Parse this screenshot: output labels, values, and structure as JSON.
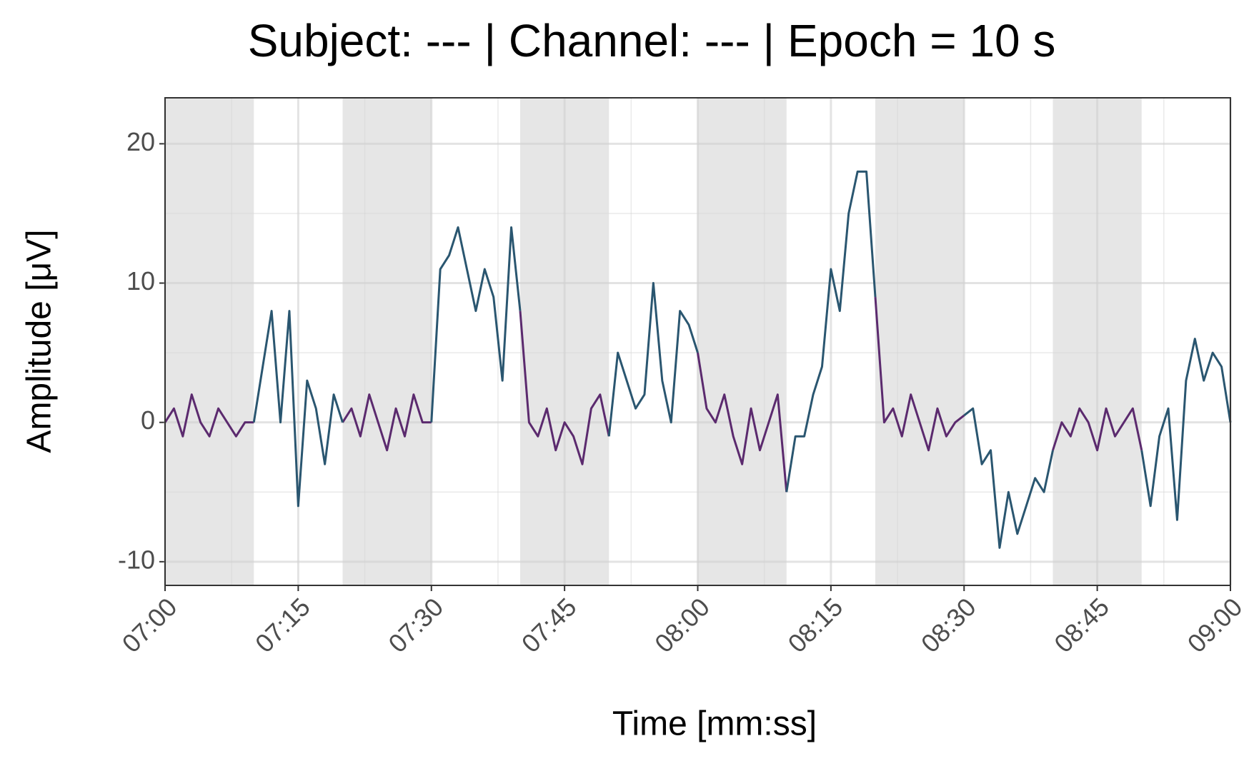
{
  "chart_data": {
    "type": "line",
    "title": "Subject: ---  |  Channel: ---  |  Epoch = 10 s",
    "x_label": "Time [mm:ss]",
    "y_label": "Amplitude [μV]",
    "x": [
      420,
      421,
      422,
      423,
      424,
      425,
      426,
      427,
      428,
      429,
      430,
      431,
      432,
      433,
      434,
      435,
      436,
      437,
      438,
      439,
      440,
      441,
      442,
      443,
      444,
      445,
      446,
      447,
      448,
      449,
      450,
      451,
      452,
      453,
      454,
      455,
      456,
      457,
      458,
      459,
      460,
      461,
      462,
      463,
      464,
      465,
      466,
      467,
      468,
      469,
      470,
      471,
      472,
      473,
      474,
      475,
      476,
      477,
      478,
      479,
      480,
      481,
      482,
      483,
      484,
      485,
      486,
      487,
      488,
      489,
      490,
      491,
      492,
      493,
      494,
      495,
      496,
      497,
      498,
      499,
      500,
      501,
      502,
      503,
      504,
      505,
      506,
      507,
      508,
      509,
      510,
      511,
      512,
      513,
      514,
      515,
      516,
      517,
      518,
      519,
      520,
      521,
      522,
      523,
      524,
      525,
      526,
      527,
      528,
      529,
      530,
      531,
      532,
      533,
      534,
      535,
      536,
      537,
      538,
      539,
      540
    ],
    "series": [
      {
        "color": "#5b2a6e",
        "values": [
          0,
          1,
          -1,
          2,
          0,
          -1,
          1,
          0,
          -1,
          0,
          0,
          null,
          null,
          null,
          null,
          null,
          null,
          null,
          null,
          null,
          0,
          1,
          -1,
          2,
          0,
          -2,
          1,
          -1,
          2,
          0,
          0,
          null,
          null,
          null,
          null,
          null,
          null,
          null,
          null,
          null,
          8,
          0,
          -1,
          1,
          -2,
          0,
          -1,
          -3,
          1,
          2,
          -1,
          null,
          null,
          null,
          null,
          null,
          null,
          null,
          null,
          null,
          5,
          1,
          0,
          2,
          -1,
          -3,
          1,
          -2,
          0,
          2,
          -5,
          null,
          null,
          null,
          null,
          null,
          null,
          null,
          null,
          null,
          9,
          0,
          1,
          -1,
          2,
          0,
          -2,
          1,
          -1,
          0,
          0.5,
          null,
          null,
          null,
          null,
          null,
          null,
          null,
          null,
          null,
          -2,
          0,
          -1,
          1,
          0,
          -2,
          1,
          -1,
          0,
          1,
          -2,
          null,
          null,
          null,
          null,
          null,
          null,
          null,
          null,
          null,
          null
        ]
      },
      {
        "color": "#2a5670",
        "values": [
          null,
          null,
          null,
          null,
          null,
          null,
          null,
          null,
          null,
          null,
          0,
          4,
          8,
          0,
          8,
          -6,
          3,
          1,
          -3,
          2,
          0,
          null,
          null,
          null,
          null,
          null,
          null,
          null,
          null,
          null,
          0,
          11,
          12,
          14,
          11,
          8,
          11,
          9,
          3,
          14,
          8,
          null,
          null,
          null,
          null,
          null,
          null,
          null,
          null,
          null,
          -1,
          5,
          3,
          1,
          2,
          10,
          3,
          0,
          8,
          7,
          5,
          null,
          null,
          null,
          null,
          null,
          null,
          null,
          null,
          null,
          -5,
          -1,
          -1,
          2,
          4,
          11,
          8,
          15,
          18,
          18,
          9,
          null,
          null,
          null,
          null,
          null,
          null,
          null,
          null,
          null,
          0.5,
          1,
          -3,
          -2,
          -9,
          -5,
          -8,
          -6,
          -4,
          -5,
          -2,
          null,
          null,
          null,
          null,
          null,
          null,
          null,
          null,
          null,
          -2,
          -6,
          -1,
          1,
          -7,
          3,
          6,
          3,
          5,
          4,
          0
        ]
      }
    ],
    "shaded_epochs": [
      [
        420,
        430
      ],
      [
        440,
        450
      ],
      [
        460,
        470
      ],
      [
        480,
        490
      ],
      [
        500,
        510
      ],
      [
        520,
        530
      ]
    ],
    "shade_color": "#e6e6e6",
    "xlim": [
      420,
      540
    ],
    "xticks": [
      {
        "value": 420,
        "label": "07:00"
      },
      {
        "value": 435,
        "label": "07:15"
      },
      {
        "value": 450,
        "label": "07:30"
      },
      {
        "value": 465,
        "label": "07:45"
      },
      {
        "value": 480,
        "label": "08:00"
      },
      {
        "value": 495,
        "label": "08:15"
      },
      {
        "value": 510,
        "label": "08:30"
      },
      {
        "value": 525,
        "label": "08:45"
      },
      {
        "value": 540,
        "label": "09:00"
      }
    ],
    "ylim": [
      -11.7,
      23.3
    ],
    "yticks": [
      -10,
      0,
      10,
      20
    ],
    "grid": true
  }
}
